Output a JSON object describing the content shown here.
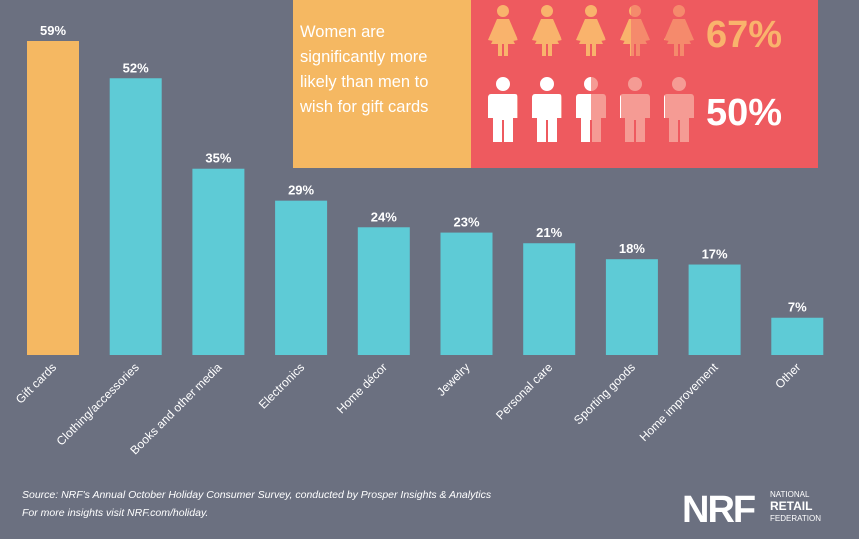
{
  "chart_data": {
    "type": "bar",
    "categories": [
      "Gift cards",
      "Clothing/accessories",
      "Books and other media",
      "Electronics",
      "Home décor",
      "Jewelry",
      "Personal care",
      "Sporting goods",
      "Home improvement",
      "Other"
    ],
    "values": [
      59,
      52,
      35,
      29,
      24,
      23,
      21,
      18,
      17,
      7
    ],
    "value_labels": [
      "59%",
      "52%",
      "35%",
      "29%",
      "24%",
      "23%",
      "21%",
      "18%",
      "17%",
      "7%"
    ],
    "colors": [
      "#f5b862",
      "#5ecbd6",
      "#5ecbd6",
      "#5ecbd6",
      "#5ecbd6",
      "#5ecbd6",
      "#5ecbd6",
      "#5ecbd6",
      "#5ecbd6",
      "#5ecbd6"
    ]
  },
  "callout": {
    "text": "Women are significantly more likely than men to wish for gift cards",
    "women": {
      "value": 67,
      "label": "67%"
    },
    "men": {
      "value": 50,
      "label": "50%"
    }
  },
  "footer": {
    "source": "Source: NRF's Annual October Holiday Consumer Survey, conducted by Prosper Insights & Analytics",
    "more": "For more insights visit NRF.com/holiday."
  },
  "logo": {
    "mark": "NRF",
    "line1": "NATIONAL",
    "line2": "RETAIL",
    "line3": "FEDERATION"
  }
}
